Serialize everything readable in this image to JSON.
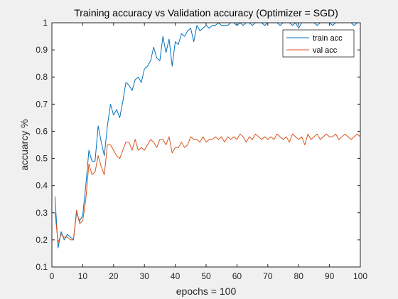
{
  "figure": {
    "background": "#f0f0f0",
    "axes_background": "#ffffff"
  },
  "chart_data": {
    "type": "line",
    "title": "Training accuracy vs Validation accuracy (Optimizer = SGD)",
    "xlabel": "epochs = 100",
    "ylabel": "accuarcy %",
    "xlim": [
      0,
      100
    ],
    "ylim": [
      0.1,
      1.0
    ],
    "xticks": [
      0,
      10,
      20,
      30,
      40,
      50,
      60,
      70,
      80,
      90,
      100
    ],
    "xtick_labels": [
      "0",
      "10",
      "20",
      "30",
      "40",
      "50",
      "60",
      "70",
      "80",
      "90",
      "100"
    ],
    "yticks": [
      0.1,
      0.2,
      0.3,
      0.4,
      0.5,
      0.6,
      0.7,
      0.8,
      0.9,
      1.0
    ],
    "ytick_labels": [
      "0.1",
      "0.2",
      "0.3",
      "0.4",
      "0.5",
      "0.6",
      "0.7",
      "0.8",
      "0.9",
      "1"
    ],
    "grid": false,
    "legend": {
      "placement": "top-right"
    },
    "x": [
      1,
      2,
      3,
      4,
      5,
      6,
      7,
      8,
      9,
      10,
      11,
      12,
      13,
      14,
      15,
      16,
      17,
      18,
      19,
      20,
      21,
      22,
      23,
      24,
      25,
      26,
      27,
      28,
      29,
      30,
      31,
      32,
      33,
      34,
      35,
      36,
      37,
      38,
      39,
      40,
      41,
      42,
      43,
      44,
      45,
      46,
      47,
      48,
      49,
      50,
      51,
      52,
      53,
      54,
      55,
      56,
      57,
      58,
      59,
      60,
      61,
      62,
      63,
      64,
      65,
      66,
      67,
      68,
      69,
      70,
      71,
      72,
      73,
      74,
      75,
      76,
      77,
      78,
      79,
      80,
      81,
      82,
      83,
      84,
      85,
      86,
      87,
      88,
      89,
      90,
      91,
      92,
      93,
      94,
      95,
      96,
      97,
      98,
      99,
      100
    ],
    "series": [
      {
        "name": "train acc",
        "color": "#0072bd",
        "values": [
          0.36,
          0.17,
          0.23,
          0.2,
          0.22,
          0.21,
          0.2,
          0.3,
          0.27,
          0.29,
          0.4,
          0.53,
          0.49,
          0.49,
          0.62,
          0.56,
          0.51,
          0.62,
          0.7,
          0.66,
          0.68,
          0.65,
          0.71,
          0.78,
          0.77,
          0.75,
          0.79,
          0.8,
          0.78,
          0.83,
          0.84,
          0.86,
          0.91,
          0.87,
          0.86,
          0.95,
          0.89,
          0.94,
          0.84,
          0.93,
          0.92,
          0.96,
          0.95,
          0.97,
          0.98,
          0.93,
          0.99,
          0.97,
          0.98,
          0.99,
          0.98,
          0.99,
          0.99,
          1.0,
          0.99,
          0.99,
          0.99,
          1.0,
          1.0,
          0.99,
          1.0,
          0.99,
          1.0,
          1.0,
          0.99,
          1.0,
          1.0,
          1.0,
          0.99,
          1.0,
          1.0,
          1.0,
          1.0,
          0.99,
          1.0,
          1.0,
          1.0,
          0.99,
          1.0,
          0.98,
          1.0,
          1.0,
          1.0,
          1.0,
          1.0,
          0.99,
          1.0,
          1.0,
          1.0,
          1.0,
          0.99,
          1.0,
          1.0,
          1.0,
          1.0,
          1.0,
          1.0,
          0.99,
          1.0,
          1.0
        ]
      },
      {
        "name": "val acc",
        "color": "#d95319",
        "values": [
          0.3,
          0.19,
          0.22,
          0.21,
          0.21,
          0.2,
          0.2,
          0.31,
          0.26,
          0.27,
          0.35,
          0.48,
          0.44,
          0.45,
          0.51,
          0.47,
          0.44,
          0.55,
          0.55,
          0.53,
          0.51,
          0.5,
          0.53,
          0.56,
          0.56,
          0.53,
          0.57,
          0.53,
          0.54,
          0.53,
          0.55,
          0.57,
          0.56,
          0.54,
          0.57,
          0.57,
          0.55,
          0.58,
          0.52,
          0.54,
          0.54,
          0.56,
          0.54,
          0.55,
          0.58,
          0.57,
          0.57,
          0.56,
          0.58,
          0.56,
          0.57,
          0.57,
          0.58,
          0.57,
          0.58,
          0.56,
          0.58,
          0.57,
          0.58,
          0.57,
          0.59,
          0.58,
          0.56,
          0.58,
          0.57,
          0.59,
          0.58,
          0.57,
          0.58,
          0.57,
          0.58,
          0.57,
          0.59,
          0.58,
          0.57,
          0.58,
          0.56,
          0.59,
          0.58,
          0.57,
          0.58,
          0.55,
          0.59,
          0.57,
          0.58,
          0.59,
          0.57,
          0.58,
          0.59,
          0.58,
          0.58,
          0.59,
          0.57,
          0.58,
          0.59,
          0.58,
          0.57,
          0.58,
          0.59,
          0.58
        ]
      }
    ]
  }
}
